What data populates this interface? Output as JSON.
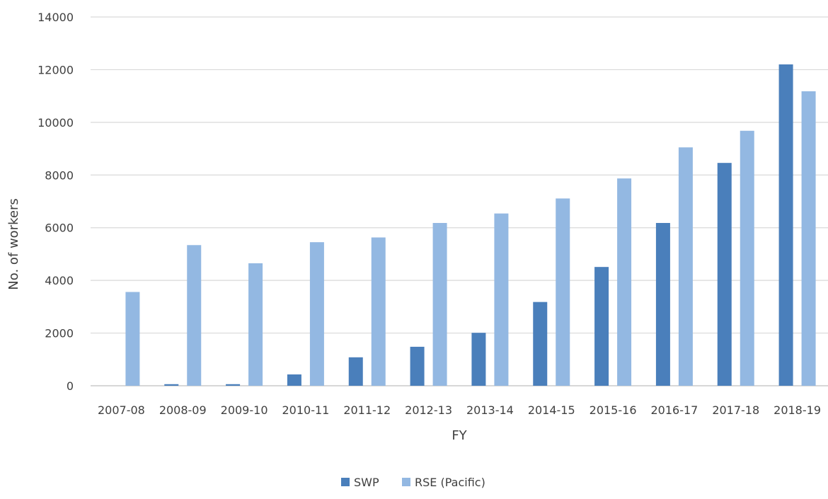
{
  "chart_data": {
    "type": "bar",
    "title": "",
    "xlabel": "FY",
    "ylabel": "No. of workers",
    "ylim": [
      0,
      14000
    ],
    "yticks": [
      0,
      2000,
      4000,
      6000,
      8000,
      10000,
      12000,
      14000
    ],
    "grid": true,
    "legend_position": "bottom",
    "categories": [
      "2007-08",
      "2008-09",
      "2009-10",
      "2010-11",
      "2011-12",
      "2012-13",
      "2013-14",
      "2014-15",
      "2015-16",
      "2016-17",
      "2017-18",
      "2018-19"
    ],
    "series": [
      {
        "name": "SWP",
        "color": "#4a7fbb",
        "values": [
          0,
          60,
          60,
          430,
          1080,
          1480,
          2010,
          3180,
          4510,
          6180,
          8460,
          12200
        ]
      },
      {
        "name": "RSE (Pacific)",
        "color": "#93b8e2",
        "values": [
          3560,
          5340,
          4650,
          5450,
          5630,
          6180,
          6540,
          7110,
          7870,
          9050,
          9680,
          11180
        ]
      }
    ]
  }
}
